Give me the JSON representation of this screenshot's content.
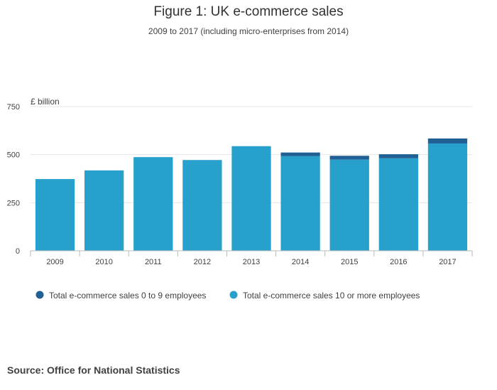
{
  "title": "Figure 1: UK e-commerce sales",
  "subtitle": "2009 to 2017 (including micro-enterprises from 2014)",
  "source": "Source: Office for National Statistics",
  "colors": {
    "large": "#27a0cc",
    "micro": "#206095",
    "grid": "#e6e6e6",
    "axis": "#bababa",
    "text": "#414042"
  },
  "chart_data": {
    "type": "bar",
    "stacked": true,
    "ylabel": "£ billion",
    "ylim": [
      0,
      750
    ],
    "yticks": [
      0,
      250,
      500,
      750
    ],
    "categories": [
      "2009",
      "2010",
      "2011",
      "2012",
      "2013",
      "2014",
      "2015",
      "2016",
      "2017"
    ],
    "series": [
      {
        "name": "Total e-commerce sales 10 or more employees",
        "color": "#27a0cc",
        "values": [
          373,
          418,
          487,
          472,
          544,
          492,
          474,
          481,
          558
        ]
      },
      {
        "name": "Total e-commerce sales 0 to 9 employees",
        "color": "#206095",
        "values": [
          0,
          0,
          0,
          0,
          0,
          19,
          20,
          21,
          26
        ]
      }
    ],
    "legend": [
      {
        "name": "Total e-commerce sales 0 to 9 employees",
        "color": "#206095"
      },
      {
        "name": "Total e-commerce sales 10 or more employees",
        "color": "#27a0cc"
      }
    ],
    "legend_position": "bottom",
    "grid": true
  }
}
